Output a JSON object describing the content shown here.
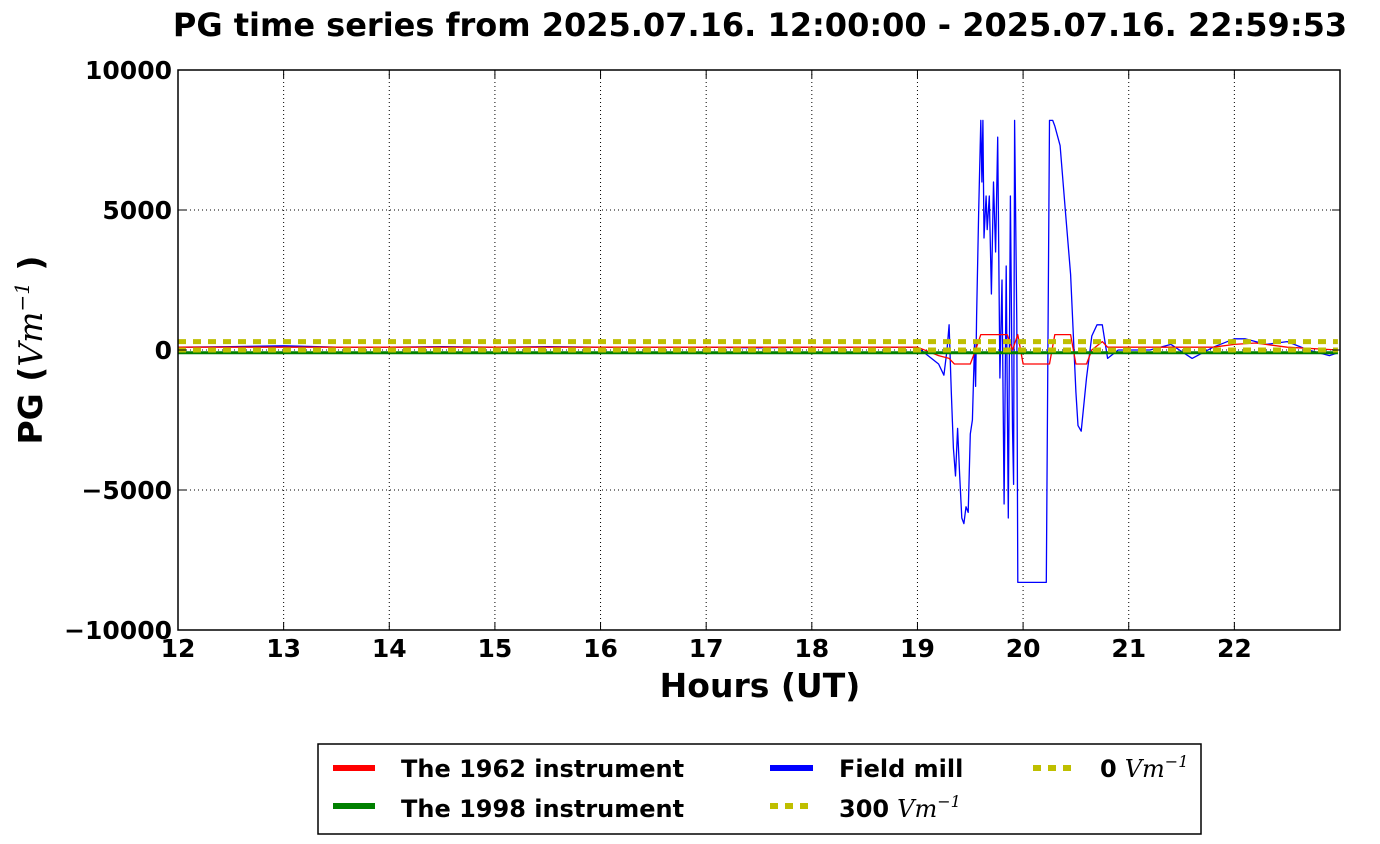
{
  "chart_data": {
    "type": "line",
    "title": "PG time series from 2025.07.16. 12:00:00 - 2025.07.16. 22:59:53",
    "xlabel": "Hours (UT)",
    "ylabel": {
      "prefix": "PG (",
      "math_base": "Vm",
      "math_exp": "−1",
      "suffix": " )"
    },
    "xlim": [
      12,
      23
    ],
    "ylim": [
      -10000,
      10000
    ],
    "x_ticks": [
      12,
      13,
      14,
      15,
      16,
      17,
      18,
      19,
      20,
      21,
      22
    ],
    "x_tick_labels": [
      "12",
      "13",
      "14",
      "15",
      "16",
      "17",
      "18",
      "19",
      "20",
      "21",
      "22"
    ],
    "y_ticks": [
      10000,
      5000,
      0,
      -5000,
      -10000
    ],
    "y_tick_labels": [
      "10000",
      "5000",
      "0",
      "−5000",
      "−10000"
    ],
    "grid": true,
    "legend_placement": "below the plot, 3 columns",
    "series": [
      {
        "name": "The 1962 instrument",
        "color": "#ff0000",
        "style": "solid",
        "x": [
          12,
          19.0,
          19.2,
          19.3,
          19.35,
          19.5,
          19.55,
          19.6,
          19.85,
          19.9,
          19.95,
          20.0,
          20.25,
          20.3,
          20.45,
          20.5,
          20.6,
          20.65,
          20.75,
          20.8,
          21.0,
          21.5,
          21.8,
          22.0,
          22.2,
          22.5,
          22.98
        ],
        "y": [
          100,
          100,
          -200,
          -300,
          -500,
          -500,
          0,
          550,
          550,
          0,
          550,
          -500,
          -500,
          550,
          550,
          -500,
          -500,
          0,
          300,
          100,
          100,
          100,
          100,
          200,
          250,
          100,
          0
        ]
      },
      {
        "name": "The 1998 instrument",
        "color": "#008000",
        "style": "solid",
        "x": [
          12,
          22.98
        ],
        "y": [
          -100,
          -100
        ]
      },
      {
        "name": "Field mill",
        "color": "#0000ff",
        "style": "solid",
        "x": [
          12,
          12.5,
          13,
          13.5,
          14,
          14.5,
          15,
          15.5,
          16,
          16.5,
          17,
          17.5,
          18,
          18.5,
          19.0,
          19.1,
          19.2,
          19.25,
          19.28,
          19.3,
          19.32,
          19.34,
          19.36,
          19.38,
          19.4,
          19.42,
          19.44,
          19.46,
          19.48,
          19.5,
          19.52,
          19.54,
          19.55,
          19.56,
          19.58,
          19.6,
          19.61,
          19.62,
          19.63,
          19.65,
          19.66,
          19.68,
          19.7,
          19.72,
          19.74,
          19.76,
          19.78,
          19.8,
          19.82,
          19.84,
          19.86,
          19.88,
          19.9,
          19.91,
          19.92,
          19.94,
          19.95,
          19.97,
          19.99,
          20.03,
          20.08,
          20.22,
          20.25,
          20.28,
          20.3,
          20.35,
          20.4,
          20.45,
          20.5,
          20.52,
          20.55,
          20.6,
          20.65,
          20.7,
          20.75,
          20.8,
          20.9,
          21.0,
          21.2,
          21.4,
          21.6,
          21.8,
          22.0,
          22.1,
          22.3,
          22.5,
          22.7,
          22.9,
          22.98
        ],
        "y": [
          100,
          120,
          150,
          100,
          100,
          120,
          100,
          120,
          100,
          100,
          100,
          80,
          100,
          100,
          100,
          -200,
          -500,
          -900,
          0,
          900,
          -1500,
          -3500,
          -4500,
          -2800,
          -4500,
          -6000,
          -6200,
          -5600,
          -5800,
          -3000,
          -2500,
          200,
          -1300,
          1200,
          5000,
          8200,
          6000,
          8200,
          4000,
          5500,
          4300,
          5500,
          2000,
          6000,
          3500,
          7600,
          -1000,
          2500,
          -5500,
          3000,
          -6000,
          5500,
          -2800,
          -4800,
          8200,
          1000,
          -8300,
          -8300,
          -8300,
          -8300,
          -8300,
          -8300,
          8200,
          8200,
          8000,
          7300,
          5000,
          2700,
          -1500,
          -2700,
          -2900,
          -1000,
          500,
          900,
          900,
          -300,
          0,
          0,
          0,
          200,
          -300,
          100,
          400,
          400,
          200,
          300,
          0,
          -200,
          -100
        ]
      },
      {
        "name": "300 Vm⁻¹",
        "legend_prefix": "300",
        "color": "#bfbf00",
        "style": "dashed",
        "x": [
          12,
          22.98
        ],
        "y": [
          300,
          300
        ]
      },
      {
        "name": "0 Vm⁻¹",
        "legend_prefix": "0",
        "color": "#bfbf00",
        "style": "dashed",
        "x": [
          12,
          22.98
        ],
        "y": [
          0,
          0
        ]
      }
    ],
    "legend": {
      "entries": [
        {
          "label": "The 1962 instrument",
          "color": "#ff0000",
          "style": "solid"
        },
        {
          "label": "The 1998 instrument",
          "color": "#008000",
          "style": "solid"
        },
        {
          "label": "Field mill",
          "color": "#0000ff",
          "style": "solid"
        },
        {
          "label_prefix": "300",
          "math_base": "Vm",
          "math_exp": "−1",
          "color": "#bfbf00",
          "style": "dashed"
        },
        {
          "label_prefix": "0",
          "math_base": "Vm",
          "math_exp": "−1",
          "color": "#bfbf00",
          "style": "dashed"
        }
      ]
    }
  }
}
